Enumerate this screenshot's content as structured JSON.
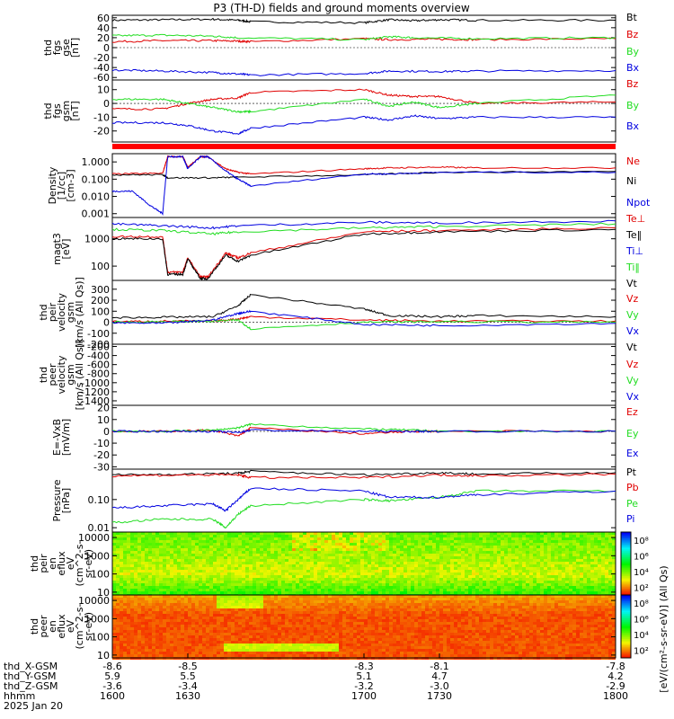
{
  "title": "P3 (TH-D) fields and ground moments overview",
  "colors": {
    "black": "#000000",
    "red": "#e00000",
    "green": "#22dd22",
    "blue": "#0000e0",
    "flag_bar": "#ff0000"
  },
  "chart_data": [
    {
      "type": "line",
      "ylabel": [
        "thd",
        "fgs",
        "gse",
        "[nT]"
      ],
      "ylim": [
        -65,
        65
      ],
      "yticks": [
        "60",
        "40",
        "20",
        "0",
        "-20",
        "-40",
        "-60"
      ],
      "ytick_values": [
        60,
        40,
        20,
        0,
        -20,
        -40,
        -60
      ],
      "legend": [
        "Bt",
        "Bz",
        "By",
        "Bx"
      ],
      "series": [
        {
          "name": "Bt",
          "color": "black",
          "x": [
            1600,
            1620,
            1640,
            1650,
            1655,
            1700,
            1710,
            1720,
            1730,
            1745,
            1800
          ],
          "y": [
            55,
            56,
            57,
            55,
            52,
            50,
            56,
            54,
            56,
            55,
            55
          ]
        },
        {
          "name": "Bz",
          "color": "red",
          "x": [
            1600,
            1620,
            1640,
            1650,
            1655,
            1700,
            1710,
            1730,
            1745,
            1800
          ],
          "y": [
            12,
            14,
            14,
            13,
            12,
            18,
            16,
            17,
            16,
            18
          ]
        },
        {
          "name": "By",
          "color": "green",
          "x": [
            1600,
            1620,
            1640,
            1650,
            1700,
            1710,
            1720,
            1745,
            1800
          ],
          "y": [
            24,
            25,
            23,
            20,
            16,
            22,
            20,
            18,
            20
          ]
        },
        {
          "name": "Bx",
          "color": "blue",
          "x": [
            1600,
            1620,
            1640,
            1650,
            1655,
            1700,
            1710,
            1730,
            1745,
            1800
          ],
          "y": [
            -45,
            -47,
            -50,
            -53,
            -55,
            -52,
            -47,
            -48,
            -47,
            -46
          ]
        }
      ]
    },
    {
      "type": "line",
      "ylabel": [
        "thd",
        "fgs",
        "gsm",
        "[nT]"
      ],
      "ylim": [
        -28,
        17
      ],
      "yticks": [
        "10",
        "0",
        "-10",
        "-20"
      ],
      "ytick_values": [
        10,
        0,
        -10,
        -20
      ],
      "legend": [
        "Bz",
        "By",
        "Bx"
      ],
      "series": [
        {
          "name": "Bz",
          "color": "red",
          "x": [
            1600,
            1620,
            1630,
            1640,
            1650,
            1655,
            1700,
            1710,
            1720,
            1730,
            1745,
            1800
          ],
          "y": [
            -4,
            -4,
            0,
            3,
            4,
            8,
            10,
            6,
            5,
            5,
            0,
            1
          ]
        },
        {
          "name": "By",
          "color": "green",
          "x": [
            1600,
            1620,
            1630,
            1640,
            1650,
            1655,
            1700,
            1710,
            1720,
            1730,
            1745,
            1800
          ],
          "y": [
            3,
            3,
            0,
            -3,
            -6,
            -6,
            3,
            -2,
            1,
            -3,
            0,
            6
          ]
        },
        {
          "name": "Bx",
          "color": "blue",
          "x": [
            1600,
            1620,
            1630,
            1640,
            1650,
            1655,
            1700,
            1710,
            1720,
            1730,
            1745,
            1800
          ],
          "y": [
            -14,
            -14,
            -16,
            -20,
            -22,
            -18,
            -10,
            -12,
            -9,
            -11,
            -10,
            -10
          ]
        }
      ]
    },
    {
      "type": "line",
      "scale": "log",
      "ylabel": [
        "Density",
        "[1/cc]",
        "[cm-3]"
      ],
      "ylim": [
        0.0006,
        3
      ],
      "yticks": [
        "1.000",
        "0.100",
        "0.010",
        "0.001"
      ],
      "ytick_values": [
        1,
        0.1,
        0.01,
        0.001
      ],
      "legend": [
        "Ne",
        "Ni",
        "Npot"
      ],
      "series": [
        {
          "name": "Ne",
          "color": "red",
          "x": [
            1600,
            1620,
            1622,
            1628,
            1630,
            1635,
            1638,
            1645,
            1650,
            1655,
            1700,
            1710,
            1730,
            1745,
            1800
          ],
          "y": [
            0.2,
            0.22,
            2.0,
            2.0,
            0.5,
            2.0,
            2.0,
            0.4,
            0.25,
            0.2,
            0.4,
            0.45,
            0.5,
            0.45,
            0.45
          ]
        },
        {
          "name": "Ni",
          "color": "black",
          "x": [
            1600,
            1620,
            1622,
            1640,
            1650,
            1700,
            1730,
            1800
          ],
          "y": [
            0.18,
            0.18,
            0.12,
            0.12,
            0.13,
            0.18,
            0.25,
            0.28
          ]
        },
        {
          "name": "Npot",
          "color": "blue",
          "x": [
            1600,
            1608,
            1615,
            1620,
            1622,
            1628,
            1630,
            1635,
            1638,
            1645,
            1650,
            1655,
            1700,
            1710,
            1730,
            1800
          ],
          "y": [
            0.02,
            0.02,
            0.003,
            0.001,
            2.0,
            2.0,
            0.4,
            2.0,
            2.0,
            0.3,
            0.1,
            0.04,
            0.2,
            0.2,
            0.25,
            0.25
          ]
        }
      ]
    },
    {
      "type": "line",
      "scale": "log",
      "ylabel": [
        "magt3",
        "[eV]"
      ],
      "ylim": [
        30,
        6000
      ],
      "yticks": [
        "1000",
        "100"
      ],
      "ytick_values": [
        1000,
        100
      ],
      "legend": [
        "Te⊥",
        "Te‖",
        "Ti⊥",
        "Ti‖"
      ],
      "series": [
        {
          "name": "Te⊥",
          "color": "red",
          "x": [
            1600,
            1620,
            1622,
            1628,
            1630,
            1635,
            1638,
            1645,
            1650,
            1655,
            1700,
            1730,
            1800
          ],
          "y": [
            1200,
            1200,
            60,
            60,
            200,
            40,
            40,
            300,
            200,
            300,
            1800,
            2000,
            2500
          ]
        },
        {
          "name": "Te‖",
          "color": "black",
          "x": [
            1600,
            1620,
            1622,
            1628,
            1630,
            1635,
            1638,
            1645,
            1650,
            1655,
            1700,
            1730,
            1800
          ],
          "y": [
            1000,
            1000,
            50,
            50,
            180,
            35,
            35,
            250,
            150,
            250,
            1500,
            1800,
            2200
          ]
        },
        {
          "name": "Ti⊥",
          "color": "blue",
          "x": [
            1600,
            1620,
            1640,
            1650,
            1700,
            1730,
            1800
          ],
          "y": [
            3500,
            3000,
            2500,
            3000,
            4000,
            3800,
            4500
          ]
        },
        {
          "name": "Ti‖",
          "color": "green",
          "x": [
            1600,
            1620,
            1640,
            1650,
            1700,
            1730,
            1800
          ],
          "y": [
            2200,
            2000,
            1500,
            1800,
            2500,
            2800,
            3500
          ]
        }
      ]
    },
    {
      "type": "line",
      "ylabel": [
        "thd",
        "peir",
        "velocity",
        "gsm",
        "[km/s (All Qs)]"
      ],
      "ylim": [
        -200,
        380
      ],
      "yticks": [
        "300",
        "200",
        "100",
        "0",
        "-100",
        "-200"
      ],
      "ytick_values": [
        300,
        200,
        100,
        0,
        -100,
        -200
      ],
      "legend": [
        "Vt",
        "Vz",
        "Vy",
        "Vx"
      ],
      "series": [
        {
          "name": "Vt",
          "color": "black",
          "x": [
            1600,
            1620,
            1640,
            1650,
            1655,
            1700,
            1710,
            1730,
            1745,
            1800
          ],
          "y": [
            40,
            45,
            50,
            150,
            250,
            120,
            60,
            50,
            60,
            50
          ]
        },
        {
          "name": "Vz",
          "color": "red",
          "x": [
            1600,
            1620,
            1640,
            1650,
            1655,
            1700,
            1730,
            1800
          ],
          "y": [
            5,
            10,
            10,
            30,
            50,
            20,
            10,
            10
          ]
        },
        {
          "name": "Vy",
          "color": "green",
          "x": [
            1600,
            1620,
            1640,
            1650,
            1655,
            1700,
            1730,
            1800
          ],
          "y": [
            0,
            5,
            10,
            20,
            -60,
            0,
            5,
            0
          ]
        },
        {
          "name": "Vx",
          "color": "blue",
          "x": [
            1600,
            1620,
            1640,
            1650,
            1655,
            1700,
            1730,
            1800
          ],
          "y": [
            -5,
            -10,
            20,
            80,
            100,
            -20,
            -30,
            -10
          ]
        }
      ]
    },
    {
      "type": "line",
      "ylabel": [
        "thd",
        "peer",
        "velocity",
        "gsm",
        "[km/s (All Qs)]"
      ],
      "ylim": [
        -1500,
        -150
      ],
      "yticks": [
        "-200",
        "-400",
        "-600",
        "-800",
        "-1000",
        "-1200",
        "-1400"
      ],
      "ytick_values": [
        -200,
        -400,
        -600,
        -800,
        -1000,
        -1200,
        -1400
      ],
      "legend": [
        "Vt",
        "Vz",
        "Vy",
        "Vx"
      ],
      "series": []
    },
    {
      "type": "line",
      "ylabel": [
        "E=-VxB",
        "[mV/m]"
      ],
      "ylim": [
        -32,
        22
      ],
      "yticks": [
        "20",
        "10",
        "0",
        "-10",
        "-20",
        "-30"
      ],
      "ytick_values": [
        20,
        10,
        0,
        -10,
        -20,
        -30
      ],
      "legend": [
        "Ez",
        "Ey",
        "Ex"
      ],
      "series": [
        {
          "name": "Ez",
          "color": "red",
          "x": [
            1600,
            1620,
            1640,
            1650,
            1655,
            1700,
            1720,
            1730,
            1800
          ],
          "y": [
            0,
            0,
            1,
            -4,
            3,
            -2,
            0,
            0,
            0
          ]
        },
        {
          "name": "Ey",
          "color": "green",
          "x": [
            1600,
            1620,
            1640,
            1650,
            1655,
            1700,
            1720,
            1730,
            1800
          ],
          "y": [
            0,
            0,
            1,
            3,
            6,
            2,
            1,
            0,
            0
          ]
        },
        {
          "name": "Ex",
          "color": "blue",
          "x": [
            1600,
            1620,
            1640,
            1650,
            1655,
            1700,
            1720,
            1730,
            1800
          ],
          "y": [
            0,
            0,
            0,
            -1,
            1,
            0,
            0,
            0,
            0
          ]
        }
      ]
    },
    {
      "type": "line",
      "scale": "log",
      "ylabel": [
        "Pressure",
        "[nPa]"
      ],
      "ylim": [
        0.007,
        1.2
      ],
      "yticks": [
        "0.10",
        "0.01"
      ],
      "ytick_values": [
        0.1,
        0.01
      ],
      "legend": [
        "Pt",
        "Pb",
        "Pe",
        "Pi"
      ],
      "series": [
        {
          "name": "Pt",
          "color": "black",
          "x": [
            1600,
            1630,
            1650,
            1655,
            1700,
            1730,
            1745,
            1800
          ],
          "y": [
            0.75,
            0.8,
            0.85,
            1.0,
            0.75,
            0.9,
            0.8,
            0.9
          ]
        },
        {
          "name": "Pb",
          "color": "red",
          "x": [
            1600,
            1630,
            1650,
            1655,
            1700,
            1730,
            1745,
            1800
          ],
          "y": [
            0.7,
            0.75,
            0.75,
            0.6,
            0.6,
            0.75,
            0.7,
            0.8
          ]
        },
        {
          "name": "Pe",
          "color": "green",
          "x": [
            1600,
            1620,
            1640,
            1645,
            1650,
            1655,
            1700,
            1710,
            1730,
            1745,
            1800
          ],
          "y": [
            0.015,
            0.02,
            0.02,
            0.01,
            0.03,
            0.06,
            0.1,
            0.09,
            0.12,
            0.2,
            0.2
          ]
        },
        {
          "name": "Pi",
          "color": "blue",
          "x": [
            1600,
            1620,
            1640,
            1645,
            1650,
            1655,
            1700,
            1710,
            1730,
            1745,
            1800
          ],
          "y": [
            0.05,
            0.06,
            0.07,
            0.04,
            0.1,
            0.25,
            0.2,
            0.12,
            0.12,
            0.15,
            0.2
          ]
        }
      ]
    },
    {
      "type": "heatmap",
      "ylabel": [
        "thd",
        "peir",
        "en",
        "eflux",
        "eV",
        "(cm^2-s-",
        "sr-eV)"
      ],
      "ylim": [
        7,
        20000
      ],
      "scale": "log",
      "yticks": [
        "10000",
        "1000",
        "100",
        "10"
      ],
      "ytick_values": [
        10000,
        1000,
        100,
        10
      ]
    },
    {
      "type": "heatmap",
      "ylabel": [
        "thd",
        "peer",
        "en",
        "eflux",
        "eV",
        "(cm^2-s-",
        "sr-eV)"
      ],
      "ylim": [
        7,
        20000
      ],
      "scale": "log",
      "yticks": [
        "10000",
        "1000",
        "100",
        "10"
      ],
      "ytick_values": [
        10000,
        1000,
        100,
        10
      ]
    }
  ],
  "colorbars": [
    {
      "ticks": [
        "10^8",
        "10^6",
        "10^4",
        "10^2"
      ],
      "tick_values": [
        8,
        6,
        4,
        2
      ],
      "range": [
        1,
        9
      ]
    },
    {
      "ticks": [
        "10^8",
        "10^6",
        "10^4",
        "10^2"
      ],
      "tick_values": [
        8,
        6,
        4,
        2
      ],
      "range": [
        1,
        9
      ]
    }
  ],
  "colorbar_label": "[eV/(cm^2-s-sr-eV)] (All Qs)",
  "x_axis": {
    "range": [
      1600,
      1800
    ],
    "ticks": [
      1600,
      1630,
      1700,
      1730,
      1800
    ],
    "rows": [
      {
        "label": "thd_X-GSM",
        "values": [
          "-8.6",
          "-8.5",
          "-8.3",
          "-8.1",
          "-7.8"
        ]
      },
      {
        "label": "thd_Y-GSM",
        "values": [
          "5.9",
          "5.5",
          "5.1",
          "4.7",
          "4.2"
        ]
      },
      {
        "label": "thd_Z-GSM",
        "values": [
          "-3.6",
          "-3.4",
          "-3.2",
          "-3.0",
          "-2.9"
        ]
      },
      {
        "label": "hhmm",
        "values": [
          "1600",
          "1630",
          "1700",
          "1730",
          "1800"
        ]
      }
    ],
    "date": "2025 Jan 20"
  }
}
